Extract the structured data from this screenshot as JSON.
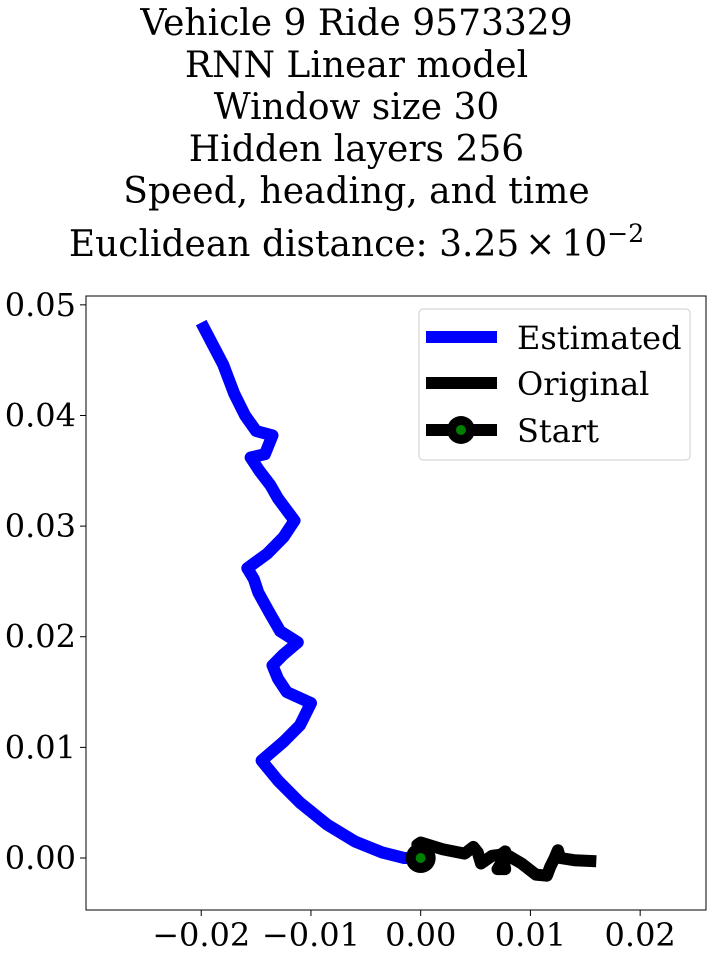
{
  "chart_data": {
    "type": "line",
    "title_lines": [
      "Vehicle 9 Ride 9573329",
      "RNN Linear model",
      "Window size 30",
      "Hidden layers 256",
      "Speed, heading, and time"
    ],
    "title_metric_prefix": "Euclidean distance: 3.25",
    "title_metric_times": "×",
    "title_metric_base": "10",
    "title_metric_exp": "−2",
    "xlim": [
      -0.0305,
      0.026
    ],
    "ylim": [
      -0.0047,
      0.0508
    ],
    "xticks": [
      -0.02,
      -0.01,
      0.0,
      0.01,
      0.02
    ],
    "xtick_labels": [
      "−0.02",
      "−0.01",
      "0.00",
      "0.01",
      "0.02"
    ],
    "yticks": [
      0.0,
      0.01,
      0.02,
      0.03,
      0.04,
      0.05
    ],
    "ytick_labels": [
      "0.00",
      "0.01",
      "0.02",
      "0.03",
      "0.04",
      "0.05"
    ],
    "legend_position": "top-right",
    "series": [
      {
        "name": "Estimated",
        "color": "#0000ff",
        "points": [
          [
            -0.02,
            0.0484
          ],
          [
            -0.018,
            0.0446
          ],
          [
            -0.017,
            0.042
          ],
          [
            -0.016,
            0.04
          ],
          [
            -0.015,
            0.0386
          ],
          [
            -0.0135,
            0.0382
          ],
          [
            -0.0142,
            0.0365
          ],
          [
            -0.0155,
            0.0362
          ],
          [
            -0.0147,
            0.035
          ],
          [
            -0.0137,
            0.0337
          ],
          [
            -0.013,
            0.0325
          ],
          [
            -0.0115,
            0.0305
          ],
          [
            -0.0125,
            0.029
          ],
          [
            -0.014,
            0.0275
          ],
          [
            -0.0158,
            0.0262
          ],
          [
            -0.0152,
            0.0252
          ],
          [
            -0.0148,
            0.024
          ],
          [
            -0.0138,
            0.0222
          ],
          [
            -0.0128,
            0.0205
          ],
          [
            -0.0112,
            0.0195
          ],
          [
            -0.0125,
            0.0184
          ],
          [
            -0.0135,
            0.0174
          ],
          [
            -0.013,
            0.0162
          ],
          [
            -0.0122,
            0.015
          ],
          [
            -0.01,
            0.014
          ],
          [
            -0.011,
            0.012
          ],
          [
            -0.0125,
            0.0105
          ],
          [
            -0.0145,
            0.0088
          ],
          [
            -0.013,
            0.007
          ],
          [
            -0.011,
            0.005
          ],
          [
            -0.0085,
            0.003
          ],
          [
            -0.006,
            0.0015
          ],
          [
            -0.0035,
            0.0005
          ],
          [
            -0.0015,
            0.0
          ],
          [
            0.0,
            0.0
          ]
        ]
      },
      {
        "name": "Original",
        "color": "#000000",
        "points": [
          [
            0.0,
            0.0
          ],
          [
            -0.0003,
            0.0012
          ],
          [
            0.0,
            0.0014
          ],
          [
            0.002,
            0.0008
          ],
          [
            0.004,
            0.0004
          ],
          [
            0.0048,
            0.001
          ],
          [
            0.0052,
            0.0005
          ],
          [
            0.0055,
            -0.0005
          ],
          [
            0.0065,
            0.0002
          ],
          [
            0.0073,
            0.0003
          ],
          [
            0.0077,
            0.0006
          ],
          [
            0.0075,
            -0.0002
          ],
          [
            0.007,
            -0.001
          ],
          [
            0.0077,
            -0.001
          ],
          [
            0.0075,
            0.0
          ],
          [
            0.008,
            0.0002
          ],
          [
            0.0092,
            -0.0005
          ],
          [
            0.0105,
            -0.0015
          ],
          [
            0.0115,
            -0.0016
          ],
          [
            0.0118,
            -0.0008
          ],
          [
            0.0122,
            0.0
          ],
          [
            0.0125,
            0.0007
          ],
          [
            0.0127,
            0.0
          ],
          [
            0.014,
            -0.0002
          ],
          [
            0.016,
            -0.0003
          ]
        ]
      },
      {
        "name": "Start",
        "color": "#000000",
        "marker_fill": "#008000",
        "points": [
          [
            0.0,
            0.0
          ]
        ]
      }
    ]
  }
}
